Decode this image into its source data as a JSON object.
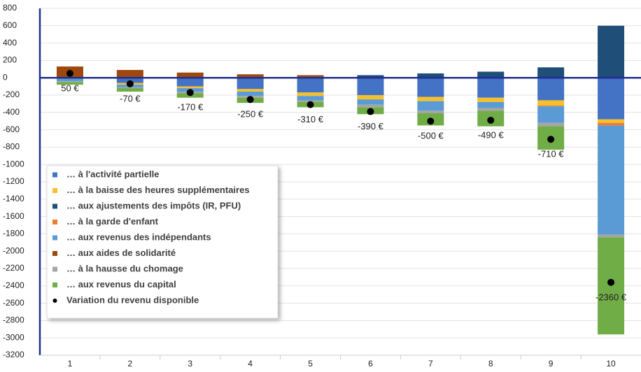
{
  "chart_data": {
    "type": "bar",
    "stacked": true,
    "categories": [
      "1",
      "2",
      "3",
      "4",
      "5",
      "6",
      "7",
      "8",
      "9",
      "10"
    ],
    "series": [
      {
        "name": "… à l'activité partielle",
        "color": "#4472c4",
        "values": [
          -10,
          -60,
          -100,
          -130,
          -170,
          -200,
          -220,
          -230,
          -260,
          -480
        ]
      },
      {
        "name": "… à la baisse des heures supplémentaires",
        "color": "#f5c02c",
        "values": [
          0,
          -20,
          -20,
          -30,
          -40,
          -50,
          -50,
          -50,
          -60,
          -40
        ]
      },
      {
        "name": "… aux ajustements des impôts (IR, PFU)",
        "color": "#1f4e79",
        "values": [
          0,
          0,
          0,
          10,
          10,
          30,
          50,
          70,
          120,
          600
        ]
      },
      {
        "name": "… à la garde d'enfant",
        "color": "#ed7d31",
        "values": [
          0,
          0,
          0,
          0,
          0,
          0,
          0,
          0,
          -10,
          -30
        ]
      },
      {
        "name": "… aux revenus des indépendants",
        "color": "#5b9bd5",
        "values": [
          -30,
          -30,
          -40,
          -50,
          -50,
          -60,
          -110,
          -70,
          -190,
          -1260
        ]
      },
      {
        "name": "… aux aides de solidarité",
        "color": "#9e480e",
        "values": [
          130,
          90,
          60,
          30,
          20,
          0,
          0,
          0,
          0,
          0
        ]
      },
      {
        "name": "… à la hausse du chomage",
        "color": "#a5a5a5",
        "values": [
          -10,
          -10,
          -20,
          -20,
          -20,
          -30,
          -30,
          -30,
          -40,
          -30
        ]
      },
      {
        "name": "… aux revenus du capital",
        "color": "#70ad47",
        "values": [
          -30,
          -40,
          -50,
          -60,
          -60,
          -80,
          -140,
          -180,
          -270,
          -1120
        ]
      }
    ],
    "points": {
      "name": "Variation du revenu disponible",
      "color": "#000000",
      "values": [
        50,
        -70,
        -170,
        -250,
        -310,
        -390,
        -500,
        -490,
        -710,
        -2360
      ],
      "value_labels": [
        "50 €",
        "-70 €",
        "-170 €",
        "-250 €",
        "-310 €",
        "-390 €",
        "-500 €",
        "-490 €",
        "-710 €",
        "-2360 €"
      ]
    },
    "ylim": [
      -3200,
      800
    ],
    "yticks": [
      -3200,
      -3000,
      -2800,
      -2600,
      -2400,
      -2200,
      -2000,
      -1800,
      -1600,
      -1400,
      -1200,
      -1000,
      -800,
      -600,
      -400,
      -200,
      0,
      200,
      400,
      600,
      800
    ],
    "grid": true,
    "legend": "left"
  }
}
